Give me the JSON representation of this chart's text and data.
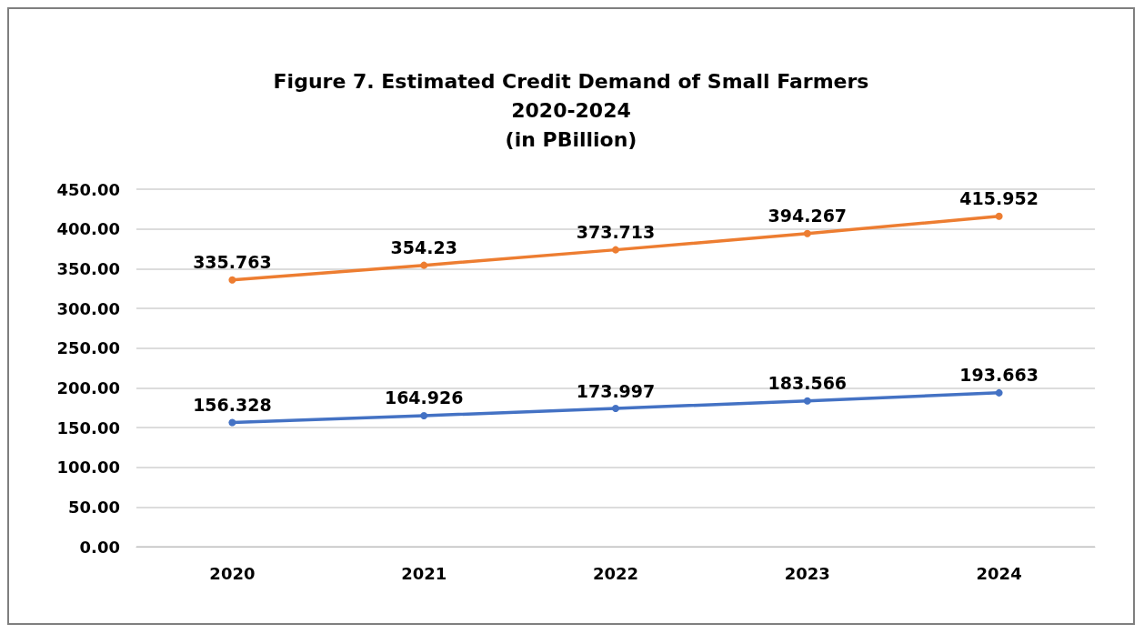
{
  "chart_data": {
    "type": "line",
    "title": "Figure 7. Estimated Credit Demand of Small Farmers\n2020-2024\n(in PBillion)",
    "categories": [
      "2020",
      "2021",
      "2022",
      "2023",
      "2024"
    ],
    "series": [
      {
        "color": "#4472c4",
        "values": [
          156.328,
          164.926,
          173.997,
          183.566,
          193.663
        ]
      },
      {
        "color": "#ed7d31",
        "values": [
          335.763,
          354.23,
          373.713,
          394.267,
          415.952
        ]
      }
    ],
    "ylim": [
      0,
      450
    ],
    "yticks": [
      {
        "value": 0,
        "label": "0.00"
      },
      {
        "value": 50,
        "label": "50.00"
      },
      {
        "value": 100,
        "label": "100.00"
      },
      {
        "value": 150,
        "label": "150.00"
      },
      {
        "value": 200,
        "label": "200.00"
      },
      {
        "value": 250,
        "label": "250.00"
      },
      {
        "value": 300,
        "label": "300.00"
      },
      {
        "value": 350,
        "label": "350.00"
      },
      {
        "value": 400,
        "label": "400.00"
      },
      {
        "value": 450,
        "label": "450.00"
      }
    ],
    "grid": "y",
    "marker": "circle",
    "line_style": "solid",
    "data_labels": true
  }
}
